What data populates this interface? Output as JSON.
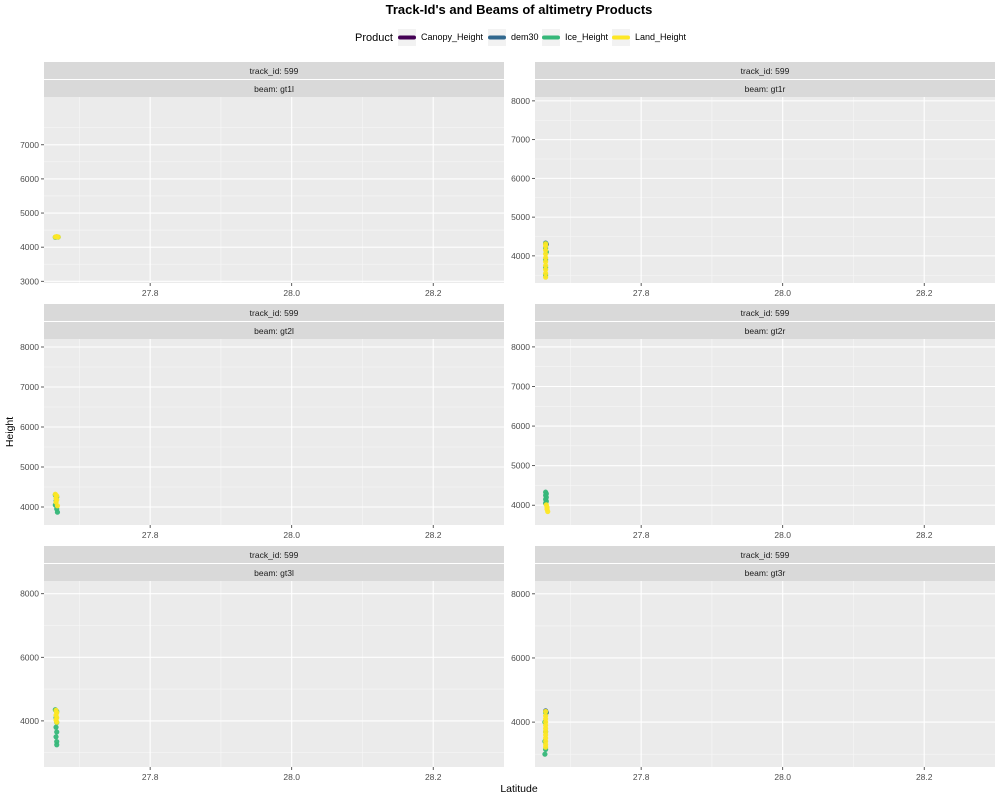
{
  "chart_data": {
    "type": "scatter",
    "title": "Track-Id's and Beams of altimetry Products",
    "xlabel": "Latitude",
    "ylabel": "Height",
    "legend": {
      "title": "Product",
      "position": "top",
      "items": [
        {
          "name": "Canopy_Height",
          "color": "#440154"
        },
        {
          "name": "dem30",
          "color": "#31688e"
        },
        {
          "name": "Ice_Height",
          "color": "#35b779"
        },
        {
          "name": "Land_Height",
          "color": "#fde725"
        }
      ]
    },
    "xlim": [
      27.65,
      28.3
    ],
    "x_ticks": [
      {
        "v": 27.8,
        "label": "27.8"
      },
      {
        "v": 28.0,
        "label": "28.0"
      },
      {
        "v": 28.2,
        "label": "28.2"
      }
    ],
    "grid": true,
    "panels": [
      {
        "track": "track_id: 599",
        "beam": "beam: gt1l",
        "ylim": [
          2950,
          8400
        ],
        "y_ticks": [
          {
            "v": 3000,
            "label": "3000"
          },
          {
            "v": 4000,
            "label": "4000"
          },
          {
            "v": 5000,
            "label": "5000"
          },
          {
            "v": 6000,
            "label": "6000"
          },
          {
            "v": 7000,
            "label": "7000"
          }
        ],
        "series": [
          {
            "name": "Ice_Height",
            "points": [
              [
                27.666,
                4290
              ],
              [
                27.668,
                4300
              ],
              [
                27.67,
                4295
              ]
            ]
          },
          {
            "name": "Land_Height",
            "points": [
              [
                27.666,
                4300
              ],
              [
                27.668,
                4310
              ],
              [
                27.67,
                4298
              ]
            ]
          }
        ]
      },
      {
        "track": "track_id: 599",
        "beam": "beam: gt1r",
        "ylim": [
          3300,
          8100
        ],
        "y_ticks": [
          {
            "v": 4000,
            "label": "4000"
          },
          {
            "v": 5000,
            "label": "5000"
          },
          {
            "v": 6000,
            "label": "6000"
          },
          {
            "v": 7000,
            "label": "7000"
          },
          {
            "v": 8000,
            "label": "8000"
          }
        ],
        "series": [
          {
            "name": "dem30",
            "points": [
              [
                27.665,
                4330
              ],
              [
                27.666,
                4300
              ]
            ]
          },
          {
            "name": "Ice_Height",
            "points": [
              [
                27.665,
                4320
              ],
              [
                27.665,
                4200
              ],
              [
                27.666,
                4100
              ],
              [
                27.665,
                3900
              ],
              [
                27.665,
                3700
              ],
              [
                27.665,
                3500
              ]
            ]
          },
          {
            "name": "Land_Height",
            "points": [
              [
                27.665,
                4310
              ],
              [
                27.665,
                4250
              ],
              [
                27.665,
                4150
              ],
              [
                27.665,
                4050
              ],
              [
                27.665,
                3950
              ],
              [
                27.665,
                3850
              ],
              [
                27.665,
                3750
              ],
              [
                27.665,
                3650
              ],
              [
                27.665,
                3550
              ],
              [
                27.665,
                3450
              ]
            ]
          }
        ]
      },
      {
        "track": "track_id: 599",
        "beam": "beam: gt2l",
        "ylim": [
          3550,
          8200
        ],
        "y_ticks": [
          {
            "v": 4000,
            "label": "4000"
          },
          {
            "v": 5000,
            "label": "5000"
          },
          {
            "v": 6000,
            "label": "6000"
          },
          {
            "v": 7000,
            "label": "7000"
          },
          {
            "v": 8000,
            "label": "8000"
          }
        ],
        "series": [
          {
            "name": "Ice_Height",
            "points": [
              [
                27.666,
                4300
              ],
              [
                27.668,
                4250
              ],
              [
                27.667,
                4150
              ],
              [
                27.666,
                4050
              ],
              [
                27.668,
                3950
              ],
              [
                27.669,
                3870
              ]
            ]
          },
          {
            "name": "Land_Height",
            "points": [
              [
                27.666,
                4320
              ],
              [
                27.668,
                4280
              ],
              [
                27.667,
                4220
              ],
              [
                27.668,
                4180
              ],
              [
                27.667,
                4120
              ],
              [
                27.669,
                4030
              ]
            ]
          }
        ]
      },
      {
        "track": "track_id: 599",
        "beam": "beam: gt2r",
        "ylim": [
          3500,
          8200
        ],
        "y_ticks": [
          {
            "v": 4000,
            "label": "4000"
          },
          {
            "v": 5000,
            "label": "5000"
          },
          {
            "v": 6000,
            "label": "6000"
          },
          {
            "v": 7000,
            "label": "7000"
          },
          {
            "v": 8000,
            "label": "8000"
          }
        ],
        "series": [
          {
            "name": "Ice_Height",
            "points": [
              [
                27.665,
                4330
              ],
              [
                27.666,
                4290
              ],
              [
                27.665,
                4250
              ],
              [
                27.666,
                4200
              ],
              [
                27.665,
                4150
              ],
              [
                27.666,
                4100
              ],
              [
                27.665,
                4050
              ]
            ]
          },
          {
            "name": "Land_Height",
            "points": [
              [
                27.666,
                4010
              ],
              [
                27.667,
                3950
              ],
              [
                27.667,
                3900
              ],
              [
                27.668,
                3840
              ]
            ]
          }
        ]
      },
      {
        "track": "track_id: 599",
        "beam": "beam: gt3l",
        "ylim": [
          2550,
          8400
        ],
        "y_ticks": [
          {
            "v": 4000,
            "label": "4000"
          },
          {
            "v": 6000,
            "label": "6000"
          },
          {
            "v": 8000,
            "label": "8000"
          }
        ],
        "series": [
          {
            "name": "Ice_Height",
            "points": [
              [
                27.666,
                4350
              ],
              [
                27.668,
                4300
              ],
              [
                27.667,
                4100
              ],
              [
                27.668,
                3950
              ],
              [
                27.667,
                3800
              ],
              [
                27.668,
                3650
              ],
              [
                27.667,
                3500
              ],
              [
                27.668,
                3350
              ],
              [
                27.668,
                3250
              ]
            ]
          },
          {
            "name": "Land_Height",
            "points": [
              [
                27.667,
                4330
              ],
              [
                27.668,
                4260
              ],
              [
                27.667,
                4180
              ],
              [
                27.668,
                4100
              ],
              [
                27.667,
                4030
              ],
              [
                27.668,
                3960
              ]
            ]
          }
        ]
      },
      {
        "track": "track_id: 599",
        "beam": "beam: gt3r",
        "ylim": [
          2600,
          8400
        ],
        "y_ticks": [
          {
            "v": 4000,
            "label": "4000"
          },
          {
            "v": 6000,
            "label": "6000"
          },
          {
            "v": 8000,
            "label": "8000"
          }
        ],
        "series": [
          {
            "name": "dem30",
            "points": [
              [
                27.665,
                4350
              ],
              [
                27.666,
                4300
              ]
            ]
          },
          {
            "name": "Ice_Height",
            "points": [
              [
                27.665,
                4300
              ],
              [
                27.664,
                4000
              ],
              [
                27.665,
                3700
              ],
              [
                27.664,
                3400
              ],
              [
                27.665,
                3150
              ],
              [
                27.664,
                3000
              ]
            ]
          },
          {
            "name": "Land_Height",
            "points": [
              [
                27.665,
                4330
              ],
              [
                27.665,
                4200
              ],
              [
                27.665,
                4100
              ],
              [
                27.665,
                4000
              ],
              [
                27.665,
                3900
              ],
              [
                27.665,
                3800
              ],
              [
                27.665,
                3700
              ],
              [
                27.665,
                3600
              ],
              [
                27.665,
                3500
              ],
              [
                27.665,
                3400
              ],
              [
                27.665,
                3300
              ],
              [
                27.665,
                3220
              ]
            ]
          }
        ]
      }
    ]
  }
}
